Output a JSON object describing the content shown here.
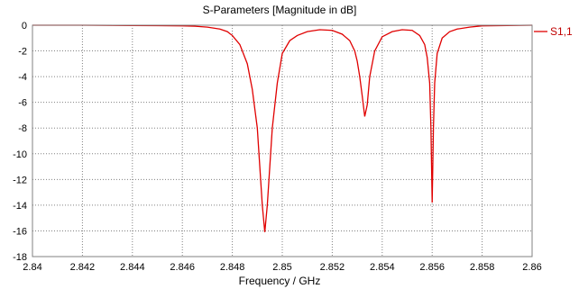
{
  "chart_data": {
    "type": "line",
    "title": "S-Parameters [Magnitude in dB]",
    "xlabel": "Frequency / GHz",
    "ylabel": "",
    "xlim": [
      2.84,
      2.86
    ],
    "ylim": [
      -18,
      0
    ],
    "grid": true,
    "legend_position": "right",
    "x_ticks": [
      "2.84",
      "2.842",
      "2.844",
      "2.846",
      "2.848",
      "2.85",
      "2.852",
      "2.854",
      "2.856",
      "2.858",
      "2.86"
    ],
    "y_ticks": [
      "0",
      "-2",
      "-4",
      "-6",
      "-8",
      "-10",
      "-12",
      "-14",
      "-16",
      "-18"
    ],
    "series": [
      {
        "name": "S1,1",
        "color": "#e00000",
        "x": [
          2.84,
          2.842,
          2.844,
          2.845,
          2.846,
          2.8465,
          2.847,
          2.8475,
          2.8478,
          2.848,
          2.8483,
          2.8486,
          2.8488,
          2.849,
          2.8491,
          2.8492,
          2.8493,
          2.8494,
          2.8495,
          2.8496,
          2.8498,
          2.85,
          2.8503,
          2.8506,
          2.851,
          2.8515,
          2.852,
          2.8524,
          2.8527,
          2.8529,
          2.853,
          2.8531,
          2.8532,
          2.8533,
          2.8534,
          2.8535,
          2.8537,
          2.854,
          2.8544,
          2.8548,
          2.8552,
          2.8555,
          2.8557,
          2.8558,
          2.8559,
          2.85595,
          2.856,
          2.85605,
          2.8561,
          2.8562,
          2.8564,
          2.8567,
          2.857,
          2.8575,
          2.858,
          2.859,
          2.86
        ],
        "values": [
          0,
          0,
          -0.02,
          -0.03,
          -0.05,
          -0.08,
          -0.15,
          -0.3,
          -0.5,
          -0.8,
          -1.5,
          -3.0,
          -5.0,
          -8.0,
          -11.0,
          -14.0,
          -16.1,
          -14.0,
          -11.0,
          -8.0,
          -4.5,
          -2.2,
          -1.2,
          -0.8,
          -0.5,
          -0.35,
          -0.4,
          -0.7,
          -1.2,
          -2.0,
          -2.8,
          -4.0,
          -5.5,
          -7.1,
          -6.2,
          -4.0,
          -2.0,
          -0.9,
          -0.5,
          -0.35,
          -0.4,
          -0.8,
          -1.5,
          -2.5,
          -4.5,
          -8.0,
          -13.8,
          -8.0,
          -4.5,
          -2.2,
          -1.0,
          -0.5,
          -0.3,
          -0.15,
          -0.05,
          -0.02,
          0
        ]
      }
    ]
  }
}
